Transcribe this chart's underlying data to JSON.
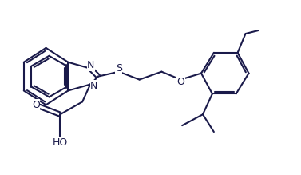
{
  "bg_color": "#ffffff",
  "line_color": "#1a1a4a",
  "line_width": 1.5,
  "font_size": 9,
  "figsize": [
    3.77,
    2.19
  ],
  "dpi": 100,
  "xlim": [
    0.0,
    9.5
  ],
  "ylim": [
    0.0,
    5.5
  ]
}
